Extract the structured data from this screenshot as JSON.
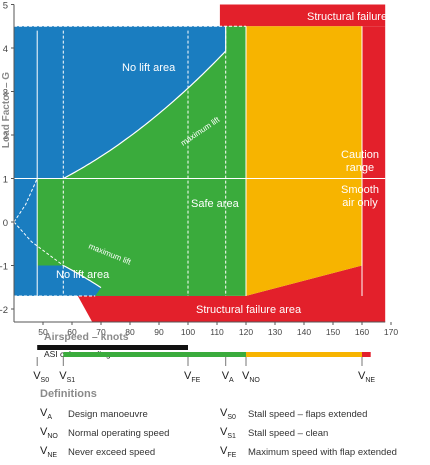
{
  "chart_data": {
    "type": "diagram",
    "title": "",
    "ylabel": "Load Factor – G",
    "xlabel": "Airspeed – knots",
    "y_ticks": [
      "5",
      "4",
      "3",
      "2",
      "1",
      "0",
      "-1",
      "-2"
    ],
    "x_ticks": [
      "50",
      "60",
      "70",
      "80",
      "90",
      "100",
      "110",
      "120",
      "130",
      "140",
      "150",
      "160",
      "170"
    ],
    "xlim": [
      40,
      170
    ],
    "ylim": [
      -2.3,
      5
    ],
    "regions": {
      "no_lift_top": "No lift area",
      "no_lift_bottom": "No lift area",
      "safe": "Safe area",
      "caution": "Caution range",
      "smooth_air": "Smooth air only",
      "structural_top": "Structural failure area",
      "structural_bottom": "Structural failure area",
      "structural_right": "Structural failure area"
    },
    "curve_labels": {
      "max_lift_top": "maximum lift",
      "max_lift_bottom": "maximum lift"
    },
    "speeds": {
      "VS0": 48,
      "VS1": 57,
      "VFE": 100,
      "VA": 113,
      "VNO": 120,
      "VNE": 160
    },
    "limits": {
      "positive_g": 4.5,
      "negative_g": -1.7,
      "vne_negative_g": -1
    },
    "asi_label": "ASI colour coding",
    "asi_bands": [
      {
        "color": "black",
        "from": 48,
        "to": 100
      },
      {
        "color": "green",
        "from": 57,
        "to": 120
      },
      {
        "color": "yellow",
        "from": 120,
        "to": 160
      },
      {
        "color": "red",
        "from": 160,
        "to": 161
      }
    ],
    "colors": {
      "blue": "#1a7dc0",
      "green": "#3aab3c",
      "yellow": "#f7b400",
      "red": "#e3202b",
      "black": "#111111"
    }
  },
  "speed_labels": [
    {
      "main": "V",
      "sub": "S0",
      "speed": 48
    },
    {
      "main": "V",
      "sub": "S1",
      "speed": 57
    },
    {
      "main": "V",
      "sub": "FE",
      "speed": 100
    },
    {
      "main": "V",
      "sub": "A",
      "speed": 113
    },
    {
      "main": "V",
      "sub": "NO",
      "speed": 120
    },
    {
      "main": "V",
      "sub": "NE",
      "speed": 160
    }
  ],
  "definitions": {
    "title": "Definitions",
    "items": [
      {
        "sym": "V",
        "sub": "A",
        "text": "Design manoeuvre"
      },
      {
        "sym": "V",
        "sub": "NO",
        "text": "Normal operating speed"
      },
      {
        "sym": "V",
        "sub": "NE",
        "text": "Never exceed speed"
      },
      {
        "sym": "V",
        "sub": "S0",
        "text": "Stall speed – flaps extended"
      },
      {
        "sym": "V",
        "sub": "S1",
        "text": "Stall speed – clean"
      },
      {
        "sym": "V",
        "sub": "FE",
        "text": "Maximum speed with flap extended"
      }
    ]
  }
}
